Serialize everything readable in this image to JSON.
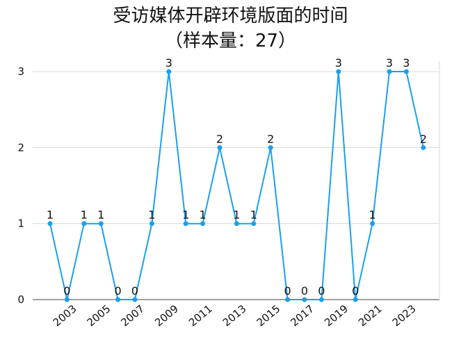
{
  "chart_data": {
    "type": "line",
    "title": "受访媒体开辟环境版面的时间",
    "subtitle": "（样本量：27）",
    "xlabel": "",
    "ylabel": "",
    "x": [
      2002,
      2003,
      2004,
      2005,
      2006,
      2007,
      2008,
      2009,
      2010,
      2011,
      2012,
      2013,
      2014,
      2015,
      2016,
      2017,
      2018,
      2019,
      2020,
      2021,
      2022,
      2023,
      2024
    ],
    "series": [
      {
        "values": [
          1,
          0,
          1,
          1,
          0,
          0,
          1,
          3,
          1,
          1,
          2,
          1,
          1,
          2,
          0,
          0,
          0,
          3,
          0,
          1,
          3,
          3,
          2
        ]
      }
    ],
    "x_tick_labels": [
      "2003",
      "2005",
      "2007",
      "2009",
      "2011",
      "2013",
      "2015",
      "2017",
      "2019",
      "2021",
      "2023"
    ],
    "y_ticks": [
      0,
      1,
      2,
      3
    ],
    "ylim": [
      0,
      3
    ],
    "grid": "horizontal",
    "line_color": "#1a9ff0",
    "grid_color": "#d8d8d8",
    "show_data_labels": true
  }
}
